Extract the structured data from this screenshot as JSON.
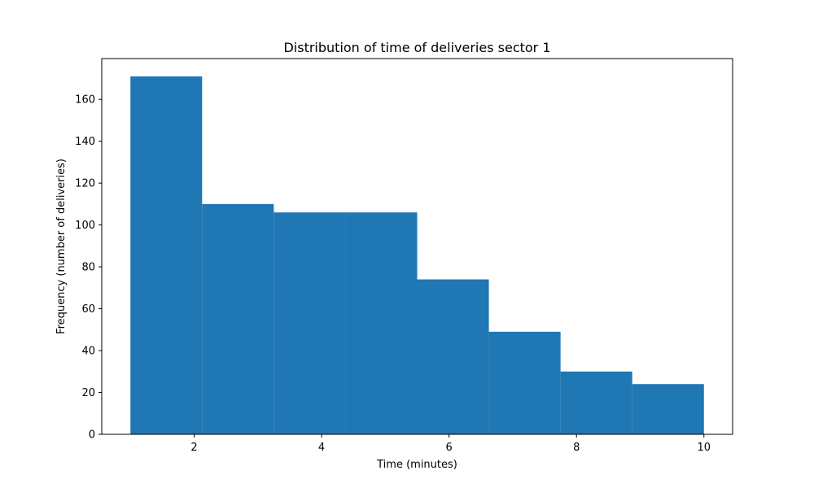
{
  "chart_data": {
    "type": "bar",
    "title": "Distribution of time of deliveries sector 1",
    "xlabel": "Time (minutes)",
    "ylabel": "Frequency (number of deliveries)",
    "bin_edges": [
      1.0,
      2.125,
      3.25,
      4.375,
      5.5,
      6.625,
      7.75,
      8.875,
      10.0
    ],
    "values": [
      171,
      110,
      106,
      106,
      74,
      49,
      30,
      24
    ],
    "xlim": [
      0.55,
      10.45
    ],
    "ylim": [
      0,
      179.5
    ],
    "xticks": [
      2,
      4,
      6,
      8,
      10
    ],
    "yticks": [
      0,
      20,
      40,
      60,
      80,
      100,
      120,
      140,
      160
    ],
    "bar_color": "#1f77b4",
    "grid": false
  }
}
